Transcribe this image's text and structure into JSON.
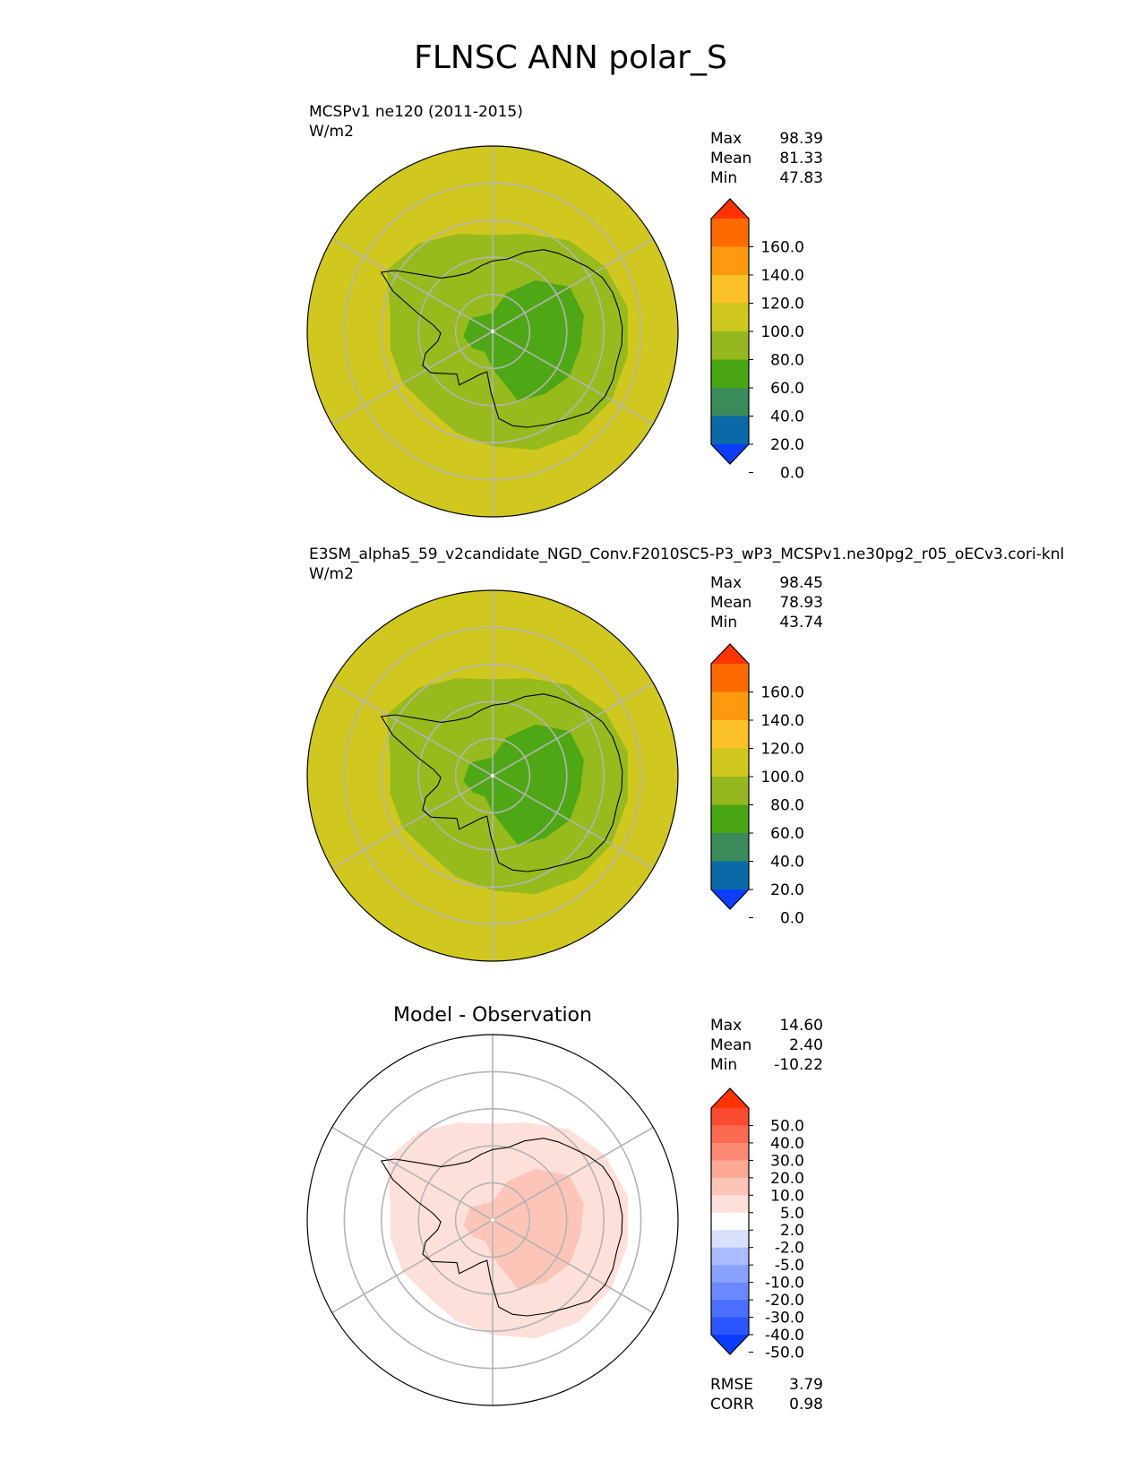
{
  "figure": {
    "title": "FLNSC ANN polar_S"
  },
  "panels": [
    {
      "title_left": "MCSPv1 ne120 (2011-2015)",
      "units": "W/m2",
      "title_center": "",
      "stats": [
        {
          "label": "Max",
          "value": "98.39"
        },
        {
          "label": "Mean",
          "value": "81.33"
        },
        {
          "label": "Min",
          "value": "47.83"
        }
      ],
      "colorbar": {
        "ticks": [
          "160.0",
          "140.0",
          "120.0",
          "100.0",
          "80.0",
          "60.0",
          "40.0",
          "20.0",
          "0.0"
        ],
        "colors": [
          "#0b3cff",
          "#0a6aa8",
          "#3a8a5a",
          "#4aa515",
          "#95b81e",
          "#cfc81e",
          "#fbc128",
          "#ff9a10",
          "#ff6a00",
          "#ff3300"
        ]
      },
      "map": {
        "ocean": "#d0c81f",
        "shelf": "#97ba1c",
        "interior": "#4ea714"
      }
    },
    {
      "title_left": "E3SM_alpha5_59_v2candidate_NGD_Conv.F2010SC5-P3_wP3_MCSPv1.ne30pg2_r05_oECv3.cori-knl",
      "units": "W/m2",
      "title_center": "",
      "stats": [
        {
          "label": "Max",
          "value": "98.45"
        },
        {
          "label": "Mean",
          "value": "78.93"
        },
        {
          "label": "Min",
          "value": "43.74"
        }
      ],
      "colorbar": {
        "ticks": [
          "160.0",
          "140.0",
          "120.0",
          "100.0",
          "80.0",
          "60.0",
          "40.0",
          "20.0",
          "0.0"
        ],
        "colors": [
          "#0b3cff",
          "#0a6aa8",
          "#3a8a5a",
          "#4aa515",
          "#95b81e",
          "#cfc81e",
          "#fbc128",
          "#ff9a10",
          "#ff6a00",
          "#ff3300"
        ]
      },
      "map": {
        "ocean": "#d0c81f",
        "shelf": "#97ba1c",
        "interior": "#4ea714"
      }
    },
    {
      "title_left": "",
      "units": "",
      "title_center": "Model - Observation",
      "stats": [
        {
          "label": "Max",
          "value": "14.60"
        },
        {
          "label": "Mean",
          "value": "2.40"
        },
        {
          "label": "Min",
          "value": "-10.22"
        }
      ],
      "colorbar": {
        "ticks": [
          "50.0",
          "40.0",
          "30.0",
          "20.0",
          "10.0",
          "5.0",
          "2.0",
          "-2.0",
          "-5.0",
          "-10.0",
          "-20.0",
          "-30.0",
          "-40.0",
          "-50.0"
        ],
        "colors": [
          "#0a3cff",
          "#2a55ff",
          "#4a6eff",
          "#6a88ff",
          "#8aa2ff",
          "#aabcff",
          "#d8e0fc",
          "#ffffff",
          "#fde0da",
          "#fcc5b8",
          "#fca894",
          "#fc8a72",
          "#fc6a50",
          "#fa4a30",
          "#ff3300"
        ]
      },
      "map": {
        "ocean": "#ffffff",
        "shelf": "#fde0da",
        "interior": "#fcc5b8"
      }
    }
  ],
  "footer_stats": [
    {
      "label": "RMSE",
      "value": "3.79"
    },
    {
      "label": "CORR",
      "value": "0.98"
    }
  ],
  "chart_data": [
    {
      "type": "heatmap",
      "projection": "south-polar-stereographic",
      "title": "MCSPv1 ne120 (2011-2015)",
      "units": "W/m2",
      "max": 98.39,
      "mean": 81.33,
      "min": 47.83,
      "levels": [
        0,
        20,
        40,
        60,
        80,
        100,
        120,
        140,
        160
      ],
      "extend": "both"
    },
    {
      "type": "heatmap",
      "projection": "south-polar-stereographic",
      "title": "E3SM_alpha5_59_v2candidate_NGD_Conv.F2010SC5-P3_wP3_MCSPv1.ne30pg2_r05_oECv3.cori-knl",
      "units": "W/m2",
      "max": 98.45,
      "mean": 78.93,
      "min": 43.74,
      "levels": [
        0,
        20,
        40,
        60,
        80,
        100,
        120,
        140,
        160
      ],
      "extend": "both"
    },
    {
      "type": "heatmap",
      "projection": "south-polar-stereographic",
      "title": "Model - Observation",
      "max": 14.6,
      "mean": 2.4,
      "min": -10.22,
      "rmse": 3.79,
      "corr": 0.98,
      "levels": [
        -50,
        -40,
        -30,
        -20,
        -10,
        -5,
        -2,
        2,
        5,
        10,
        20,
        30,
        40,
        50
      ],
      "extend": "both"
    }
  ]
}
